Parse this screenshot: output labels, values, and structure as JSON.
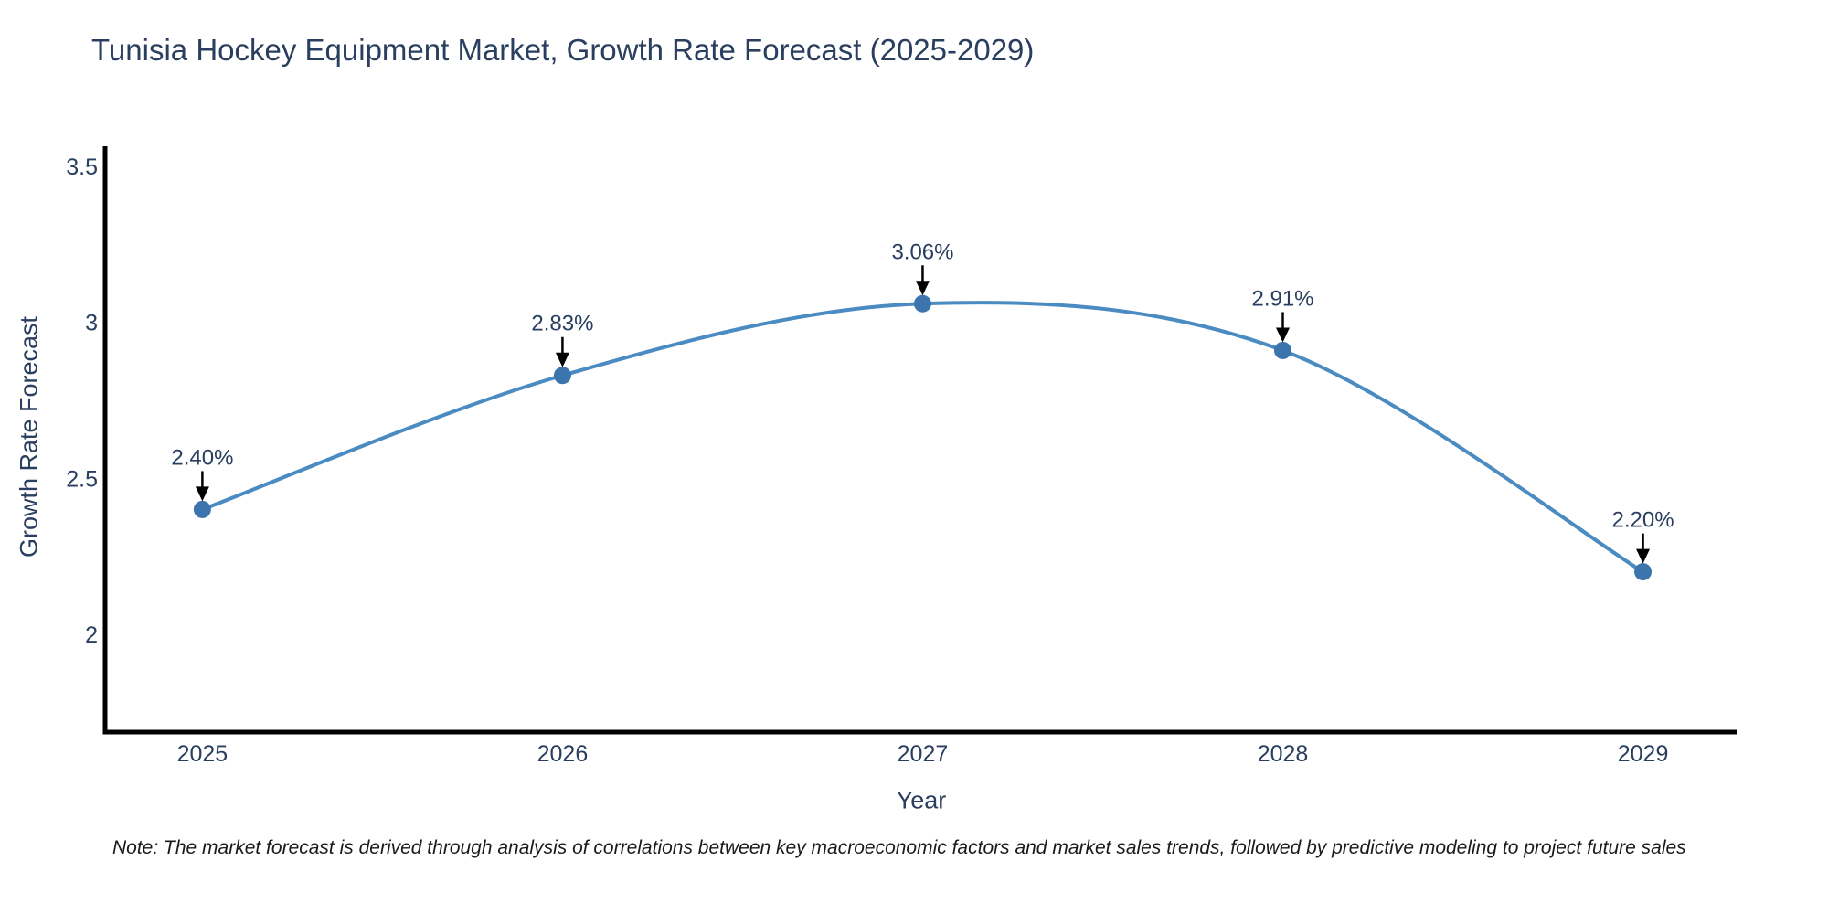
{
  "page": {
    "note": "Note: The market forecast is derived through analysis of correlations between key macroeconomic factors and market sales trends, followed by predictive modeling to project future sales"
  },
  "chart_data": {
    "type": "line",
    "title": "Tunisia Hockey Equipment Market, Growth Rate Forecast (2025-2029)",
    "xlabel": "Year",
    "ylabel": "Growth Rate Forecast",
    "x": [
      2025,
      2026,
      2027,
      2028,
      2029
    ],
    "series": [
      {
        "name": "Growth Rate Forecast",
        "values": [
          2.4,
          2.83,
          3.06,
          2.91,
          2.2
        ]
      }
    ],
    "point_labels": [
      "2.40%",
      "2.83%",
      "3.06%",
      "2.91%",
      "2.20%"
    ],
    "xticks": [
      "2025",
      "2026",
      "2027",
      "2028",
      "2029"
    ],
    "yticks": [
      2,
      2.5,
      3,
      3.5
    ],
    "ytick_labels": [
      "2",
      "2.5",
      "3",
      "3.5"
    ],
    "xlim": [
      2024.73,
      2029.26
    ],
    "ylim": [
      1.686,
      3.565
    ],
    "grid": false,
    "legend": "none",
    "line_shape": "spline",
    "marker": "circle",
    "colors": {
      "line": "#4a8bc2",
      "marker": "#3c75ad",
      "axis": "#000000",
      "tick_text": "#2a3f5f",
      "annotation_text": "#2a3f5f",
      "annotation_arrow": "#000000",
      "background": "#ffffff"
    }
  }
}
